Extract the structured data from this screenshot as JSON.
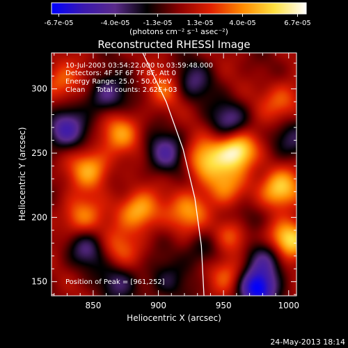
{
  "colorbar": {
    "tick_labels": [
      "-6.7e-05",
      "-4.0e-05",
      "-1.3e-05",
      "1.3e-05",
      "4.0e-05",
      "6.7e-05"
    ],
    "unit_label": "(photons cm⁻² s⁻¹ asec⁻²)",
    "range": [
      -6.7e-05,
      6.7e-05
    ],
    "colormap": [
      "#0000ff",
      "#3a18b0",
      "#5a2a8a",
      "#000000",
      "#8a0000",
      "#e02000",
      "#ff8a00",
      "#ffe040",
      "#ffffff"
    ]
  },
  "chart_data": {
    "type": "heatmap",
    "title": "Reconstructed RHESSI Image",
    "xlabel": "Heliocentric X (arcsec)",
    "ylabel": "Heliocentric Y (arcsec)",
    "xlim": [
      818,
      1006
    ],
    "ylim": [
      139,
      328
    ],
    "xticks": [
      850,
      900,
      950,
      1000
    ],
    "yticks": [
      150,
      200,
      250,
      300
    ],
    "annotations": [
      "10-Jul-2003 03:54:22.000 to 03:59:48.000",
      "Detectors: 4F 5F 6F 7F 8F, Att 0",
      "Energy Range: 25.0 - 50.0 keV",
      "Clean     Total counts: 2.62E+03"
    ],
    "peak_label": "Position of Peak = [961,252]",
    "peak": [
      961,
      252
    ],
    "limb_curve": [
      [
        888,
        328
      ],
      [
        906,
        290
      ],
      [
        919,
        253
      ],
      [
        928,
        215
      ],
      [
        933,
        178
      ],
      [
        935,
        139
      ]
    ],
    "sources": [
      {
        "x": 961,
        "y": 252,
        "v": 1.0
      },
      {
        "x": 1000,
        "y": 182,
        "v": 0.95
      },
      {
        "x": 993,
        "y": 222,
        "v": 0.8
      },
      {
        "x": 958,
        "y": 188,
        "v": 0.75
      },
      {
        "x": 885,
        "y": 205,
        "v": 0.7
      },
      {
        "x": 848,
        "y": 238,
        "v": 0.6
      },
      {
        "x": 935,
        "y": 245,
        "v": 0.6
      },
      {
        "x": 925,
        "y": 205,
        "v": 0.55
      },
      {
        "x": 870,
        "y": 265,
        "v": 0.5
      },
      {
        "x": 840,
        "y": 200,
        "v": 0.5
      },
      {
        "x": 825,
        "y": 305,
        "v": 0.45
      },
      {
        "x": 905,
        "y": 300,
        "v": 0.4
      },
      {
        "x": 955,
        "y": 155,
        "v": 0.4
      },
      {
        "x": 870,
        "y": 175,
        "v": 0.35
      },
      {
        "x": 995,
        "y": 290,
        "v": 0.45
      },
      {
        "x": 950,
        "y": 225,
        "v": 0.45
      },
      {
        "x": 905,
        "y": 150,
        "v": -0.3
      },
      {
        "x": 860,
        "y": 295,
        "v": -0.55
      },
      {
        "x": 975,
        "y": 145,
        "v": -1.0
      },
      {
        "x": 965,
        "y": 195,
        "v": -0.55
      },
      {
        "x": 985,
        "y": 170,
        "v": -0.6
      },
      {
        "x": 925,
        "y": 305,
        "v": -0.45
      },
      {
        "x": 828,
        "y": 268,
        "v": -0.7
      },
      {
        "x": 845,
        "y": 175,
        "v": -0.45
      },
      {
        "x": 905,
        "y": 250,
        "v": -0.55
      },
      {
        "x": 955,
        "y": 275,
        "v": -0.5
      },
      {
        "x": 1000,
        "y": 260,
        "v": -0.45
      },
      {
        "x": 870,
        "y": 150,
        "v": -0.4
      },
      {
        "x": 935,
        "y": 175,
        "v": -0.35
      }
    ]
  },
  "footer_date": "24-May-2013 18:14"
}
